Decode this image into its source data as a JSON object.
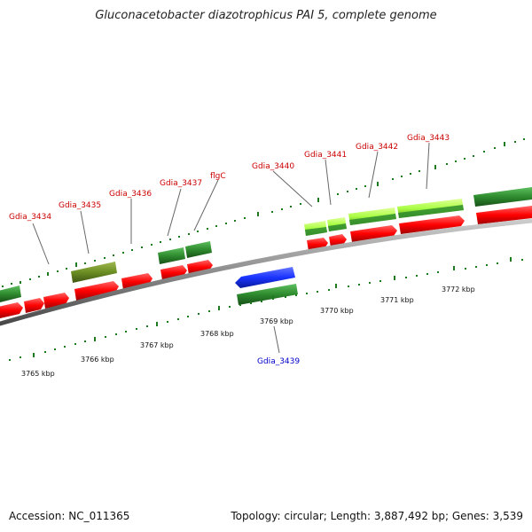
{
  "title": "Gluconacetobacter diazotrophicus PAI 5, complete genome",
  "accession": "Accession: NC_011365",
  "summary": "Topology: circular; Length: 3,887,492 bp; Genes: 3,539",
  "colors": {
    "backbone": "#8c8c8c",
    "cds_reverse": "#ff0000",
    "gene_bar": "#2e8b2e",
    "olive_gene": "#6b8e23",
    "lime_gene": "#aaff44",
    "blue_cds": "#1a33ff",
    "tick": "#1e7a1e"
  },
  "scale_labels": [
    "3765 kbp",
    "3766 kbp",
    "3767 kbp",
    "3768 kbp",
    "3769 kbp",
    "3770 kbp",
    "3771 kbp",
    "3772 kbp"
  ],
  "gene_labels": {
    "gdia_3434": "Gdia_3434",
    "gdia_3435": "Gdia_3435",
    "gdia_3436": "Gdia_3436",
    "gdia_3437": "Gdia_3437",
    "flgc": "flgC",
    "gdia_3440": "Gdia_3440",
    "gdia_3441": "Gdia_3441",
    "gdia_3442": "Gdia_3442",
    "gdia_3443": "Gdia_3443",
    "gdia_3439": "Gdia_3439"
  }
}
